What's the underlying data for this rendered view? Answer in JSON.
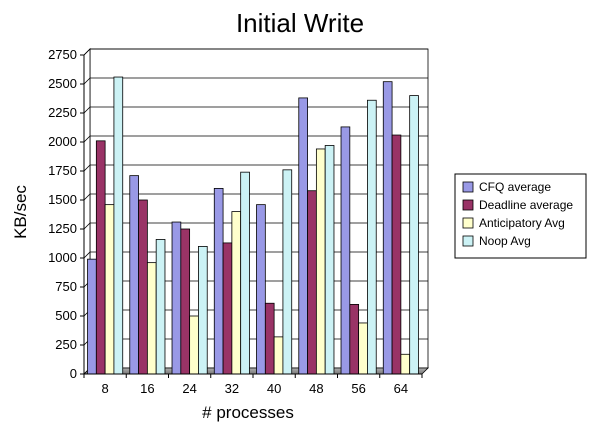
{
  "chart_data": {
    "type": "bar",
    "title": "Initial Write",
    "xlabel": "# processes",
    "ylabel": "KB/sec",
    "categories": [
      "8",
      "16",
      "24",
      "32",
      "40",
      "48",
      "56",
      "64"
    ],
    "ylim": [
      0,
      2750
    ],
    "yticks": [
      "0",
      "250",
      "500",
      "750",
      "1000",
      "1250",
      "1500",
      "1750",
      "2000",
      "2250",
      "2500",
      "2750"
    ],
    "grid": true,
    "legend_position": "right",
    "series": [
      {
        "name": "CFQ average",
        "color": "#9999e6",
        "values": [
          990,
          1710,
          1310,
          1600,
          1460,
          2380,
          2130,
          2520
        ]
      },
      {
        "name": "Deadline average",
        "color": "#993366",
        "values": [
          2010,
          1500,
          1250,
          1130,
          610,
          1580,
          600,
          2060
        ]
      },
      {
        "name": "Anticipatory Avg",
        "color": "#ffffcc",
        "values": [
          1460,
          960,
          500,
          1400,
          320,
          1940,
          440,
          170
        ]
      },
      {
        "name": "Noop Avg",
        "color": "#ccf2f5",
        "values": [
          2560,
          1160,
          1100,
          1740,
          1760,
          1970,
          2360,
          2400
        ]
      }
    ]
  }
}
